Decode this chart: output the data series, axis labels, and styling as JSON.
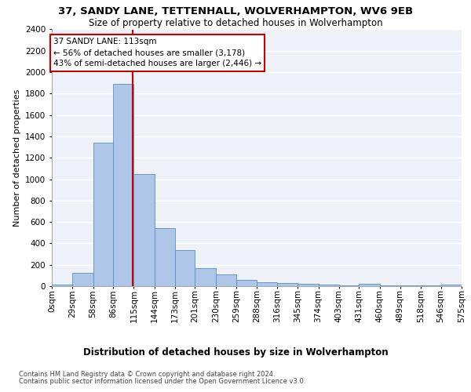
{
  "title1": "37, SANDY LANE, TETTENHALL, WOLVERHAMPTON, WV6 9EB",
  "title2": "Size of property relative to detached houses in Wolverhampton",
  "xlabel": "Distribution of detached houses by size in Wolverhampton",
  "ylabel": "Number of detached properties",
  "footnote1": "Contains HM Land Registry data © Crown copyright and database right 2024.",
  "footnote2": "Contains public sector information licensed under the Open Government Licence v3.0.",
  "annotation_title": "37 SANDY LANE: 113sqm",
  "annotation_line1": "← 56% of detached houses are smaller (3,178)",
  "annotation_line2": "43% of semi-detached houses are larger (2,446) →",
  "property_size": 113,
  "bin_edges": [
    0,
    29,
    58,
    86,
    115,
    144,
    173,
    201,
    230,
    259,
    288,
    316,
    345,
    374,
    403,
    431,
    460,
    489,
    518,
    546,
    575
  ],
  "bar_heights": [
    15,
    125,
    1340,
    1890,
    1045,
    545,
    335,
    170,
    110,
    60,
    40,
    30,
    25,
    15,
    10,
    25,
    5,
    5,
    5,
    15
  ],
  "bar_color": "#aec6e8",
  "bar_edge_color": "#5a8fc0",
  "vline_color": "#cc0000",
  "background_color": "#eef2f8",
  "grid_color": "#ffffff",
  "ylim": [
    0,
    2400
  ],
  "yticks": [
    0,
    200,
    400,
    600,
    800,
    1000,
    1200,
    1400,
    1600,
    1800,
    2000,
    2200,
    2400
  ],
  "title1_fontsize": 9.5,
  "title2_fontsize": 8.5,
  "xlabel_fontsize": 8.5,
  "ylabel_fontsize": 8,
  "tick_fontsize": 7.5,
  "annot_fontsize": 7.5,
  "footnote_fontsize": 6
}
